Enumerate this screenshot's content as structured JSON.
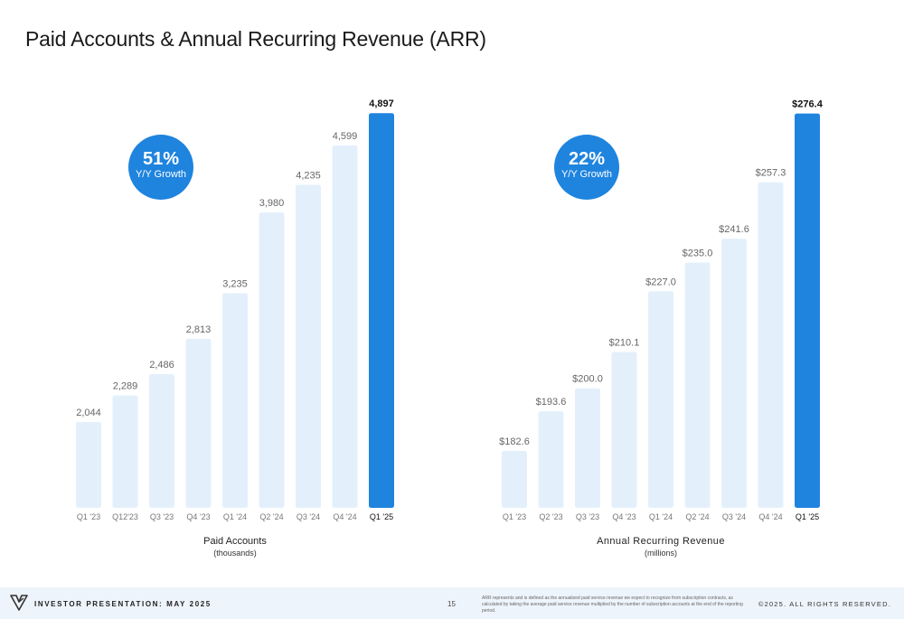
{
  "title": "Paid Accounts & Annual Recurring Revenue (ARR)",
  "colors": {
    "light_bar": "#e3f0fc",
    "highlight_bar": "#1f84de",
    "growth_circle": "#1f84de",
    "footer_bg": "#eef4fb"
  },
  "left_panel": {
    "growth_pct": "51%",
    "growth_label": "Y/Y Growth",
    "caption": "Paid Accounts",
    "caption_sub": "(thousands)"
  },
  "right_panel": {
    "growth_pct": "22%",
    "growth_label": "Y/Y Growth",
    "caption": "Annual Recurring Revenue",
    "caption_sub": "(millions)"
  },
  "chart_data": [
    {
      "type": "bar",
      "title": "Paid Accounts",
      "ylabel": "(thousands)",
      "categories": [
        "Q1 '23",
        "Q12'23",
        "Q3 '23",
        "Q4 '23",
        "Q1 '24",
        "Q2 '24",
        "Q3 '24",
        "Q4 '24",
        "Q1 '25"
      ],
      "values": [
        2044,
        2289,
        2486,
        2813,
        3235,
        3980,
        4235,
        4599,
        4897
      ],
      "data_labels": [
        "2,044",
        "2,289",
        "2,486",
        "2,813",
        "3,235",
        "3,980",
        "4,235",
        "4,599",
        "4,897"
      ],
      "highlight_index": 8,
      "grid": false
    },
    {
      "type": "bar",
      "title": "Annual Recurring Revenue",
      "ylabel": "(millions)",
      "categories": [
        "Q1 '23",
        "Q2 '23",
        "Q3 '23",
        "Q4 '23",
        "Q1 '24",
        "Q2 '24",
        "Q3 '24",
        "Q4 '24",
        "Q1 '25"
      ],
      "values": [
        182.6,
        193.6,
        200.0,
        210.1,
        227.0,
        235.0,
        241.6,
        257.3,
        276.4
      ],
      "data_labels": [
        "$182.6",
        "$193.6",
        "$200.0",
        "$210.1",
        "$227.0",
        "$235.0",
        "$241.6",
        "$257.3",
        "$276.4"
      ],
      "highlight_index": 8,
      "grid": false
    }
  ],
  "footer": {
    "presentation_label": "INVESTOR PRESENTATION: MAY 2025",
    "page_number": "15",
    "footnote": "ARR represents and is defined as the annualized paid service revenue we expect to recognize from subscription contracts, as calculated by taking the average paid service revenue multiplied by the number of subscription accounts at the end of the reporting period.",
    "copyright": "©2025. ALL RIGHTS RESERVED.",
    "logo_icon": "company-logo-icon"
  }
}
